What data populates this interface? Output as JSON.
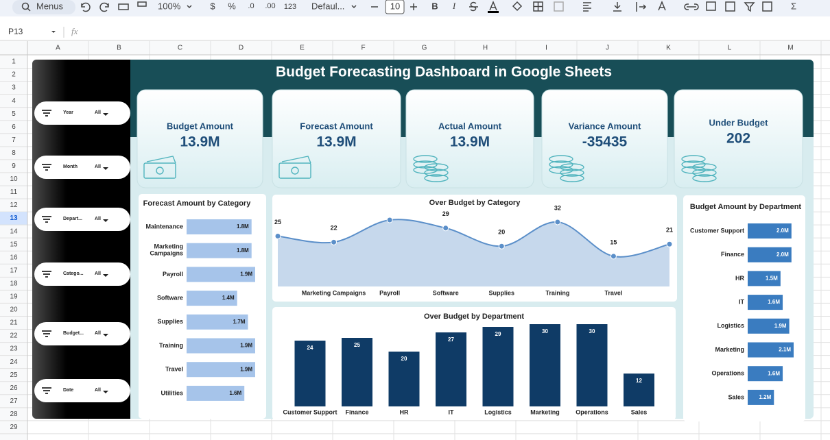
{
  "toolbar": {
    "search": "Menus",
    "zoom": "100%",
    "currency": "$",
    "percent": "%",
    "decrease_decimal": ".0",
    "increase_decimal": ".00",
    "number_format": "123",
    "font": "Defaul...",
    "font_size": 10,
    "bold": "B",
    "italic": "I",
    "sum": "Σ"
  },
  "formula_bar": {
    "cell": "P13",
    "fx": "fx"
  },
  "sheet": {
    "columns": [
      "A",
      "B",
      "C",
      "D",
      "E",
      "F",
      "G",
      "H",
      "I",
      "J",
      "K",
      "L",
      "M"
    ],
    "rows": [
      1,
      2,
      3,
      4,
      5,
      6,
      7,
      8,
      9,
      10,
      11,
      12,
      13,
      14,
      15,
      16,
      17,
      18,
      19,
      20,
      21,
      22,
      23,
      24,
      25,
      26,
      27,
      28,
      29
    ],
    "selected_row": 13
  },
  "dashboard": {
    "title": "Budget Forecasting Dashboard in Google Sheets",
    "filters": [
      {
        "label": "Year",
        "value": "All"
      },
      {
        "label": "Month",
        "value": "All"
      },
      {
        "label": "Depart...",
        "value": "All"
      },
      {
        "label": "Catego...",
        "value": "All"
      },
      {
        "label": "Budget...",
        "value": "All"
      },
      {
        "label": "Date",
        "value": "All"
      }
    ],
    "kpis": [
      {
        "label": "Budget Amount",
        "value": "13.9M"
      },
      {
        "label": "Forecast Amount",
        "value": "13.9M"
      },
      {
        "label": "Actual Amount",
        "value": "13.9M"
      },
      {
        "label": "Variance Amount",
        "value": -35435
      },
      {
        "label": "Under Budget",
        "value": 202
      }
    ],
    "charts": [
      {
        "type": "hbar",
        "title": "Forecast Amount by Category",
        "categories": [
          "Maintenance",
          "Marketing Campaigns",
          "Payroll",
          "Software",
          "Supplies",
          "Training",
          "Travel",
          "Utilities"
        ],
        "values": [
          1.8,
          1.8,
          1.9,
          1.4,
          1.7,
          1.9,
          1.9,
          1.6
        ],
        "value_labels": [
          "1.8M",
          "1.8M",
          "1.9M",
          "1.4M",
          "1.7M",
          "1.9M",
          "1.9M",
          "1.6M"
        ],
        "color": "#a6c4ea",
        "label_color": "#1a1a1a"
      },
      {
        "type": "area",
        "title": "Over Budget by Category",
        "categories": [
          null,
          "Marketing Campaigns",
          "Payroll",
          "Software",
          "Supplies",
          "Training",
          "Travel",
          null
        ],
        "values": [
          25,
          22,
          33,
          29,
          20,
          32,
          15,
          21
        ],
        "value_labels": [
          "25",
          "22",
          null,
          "29",
          "20",
          "32",
          "15",
          "21"
        ],
        "color": "#5b8fc9"
      },
      {
        "type": "bar",
        "title": "Over Budget by Department",
        "categories": [
          "Customer Support",
          "Finance",
          "HR",
          "IT",
          "Logistics",
          "Marketing",
          "Operations",
          "Sales"
        ],
        "values": [
          24,
          25,
          20,
          27,
          29,
          30,
          30,
          12
        ],
        "color": "#0f3b66",
        "label_color": "#ffffff"
      },
      {
        "type": "hbar",
        "title": "Budget Amount by Department",
        "categories": [
          "Customer Support",
          "Finance",
          "HR",
          "IT",
          "Logistics",
          "Marketing",
          "Operations",
          "Sales"
        ],
        "values": [
          2.0,
          2.0,
          1.5,
          1.6,
          1.9,
          2.1,
          1.6,
          1.2
        ],
        "value_labels": [
          "2.0M",
          "2.0M",
          "1.5M",
          "1.6M",
          "1.9M",
          "2.1M",
          "1.6M",
          "1.2M"
        ],
        "color": "#3a7cc0",
        "label_color": "#ffffff"
      }
    ]
  }
}
